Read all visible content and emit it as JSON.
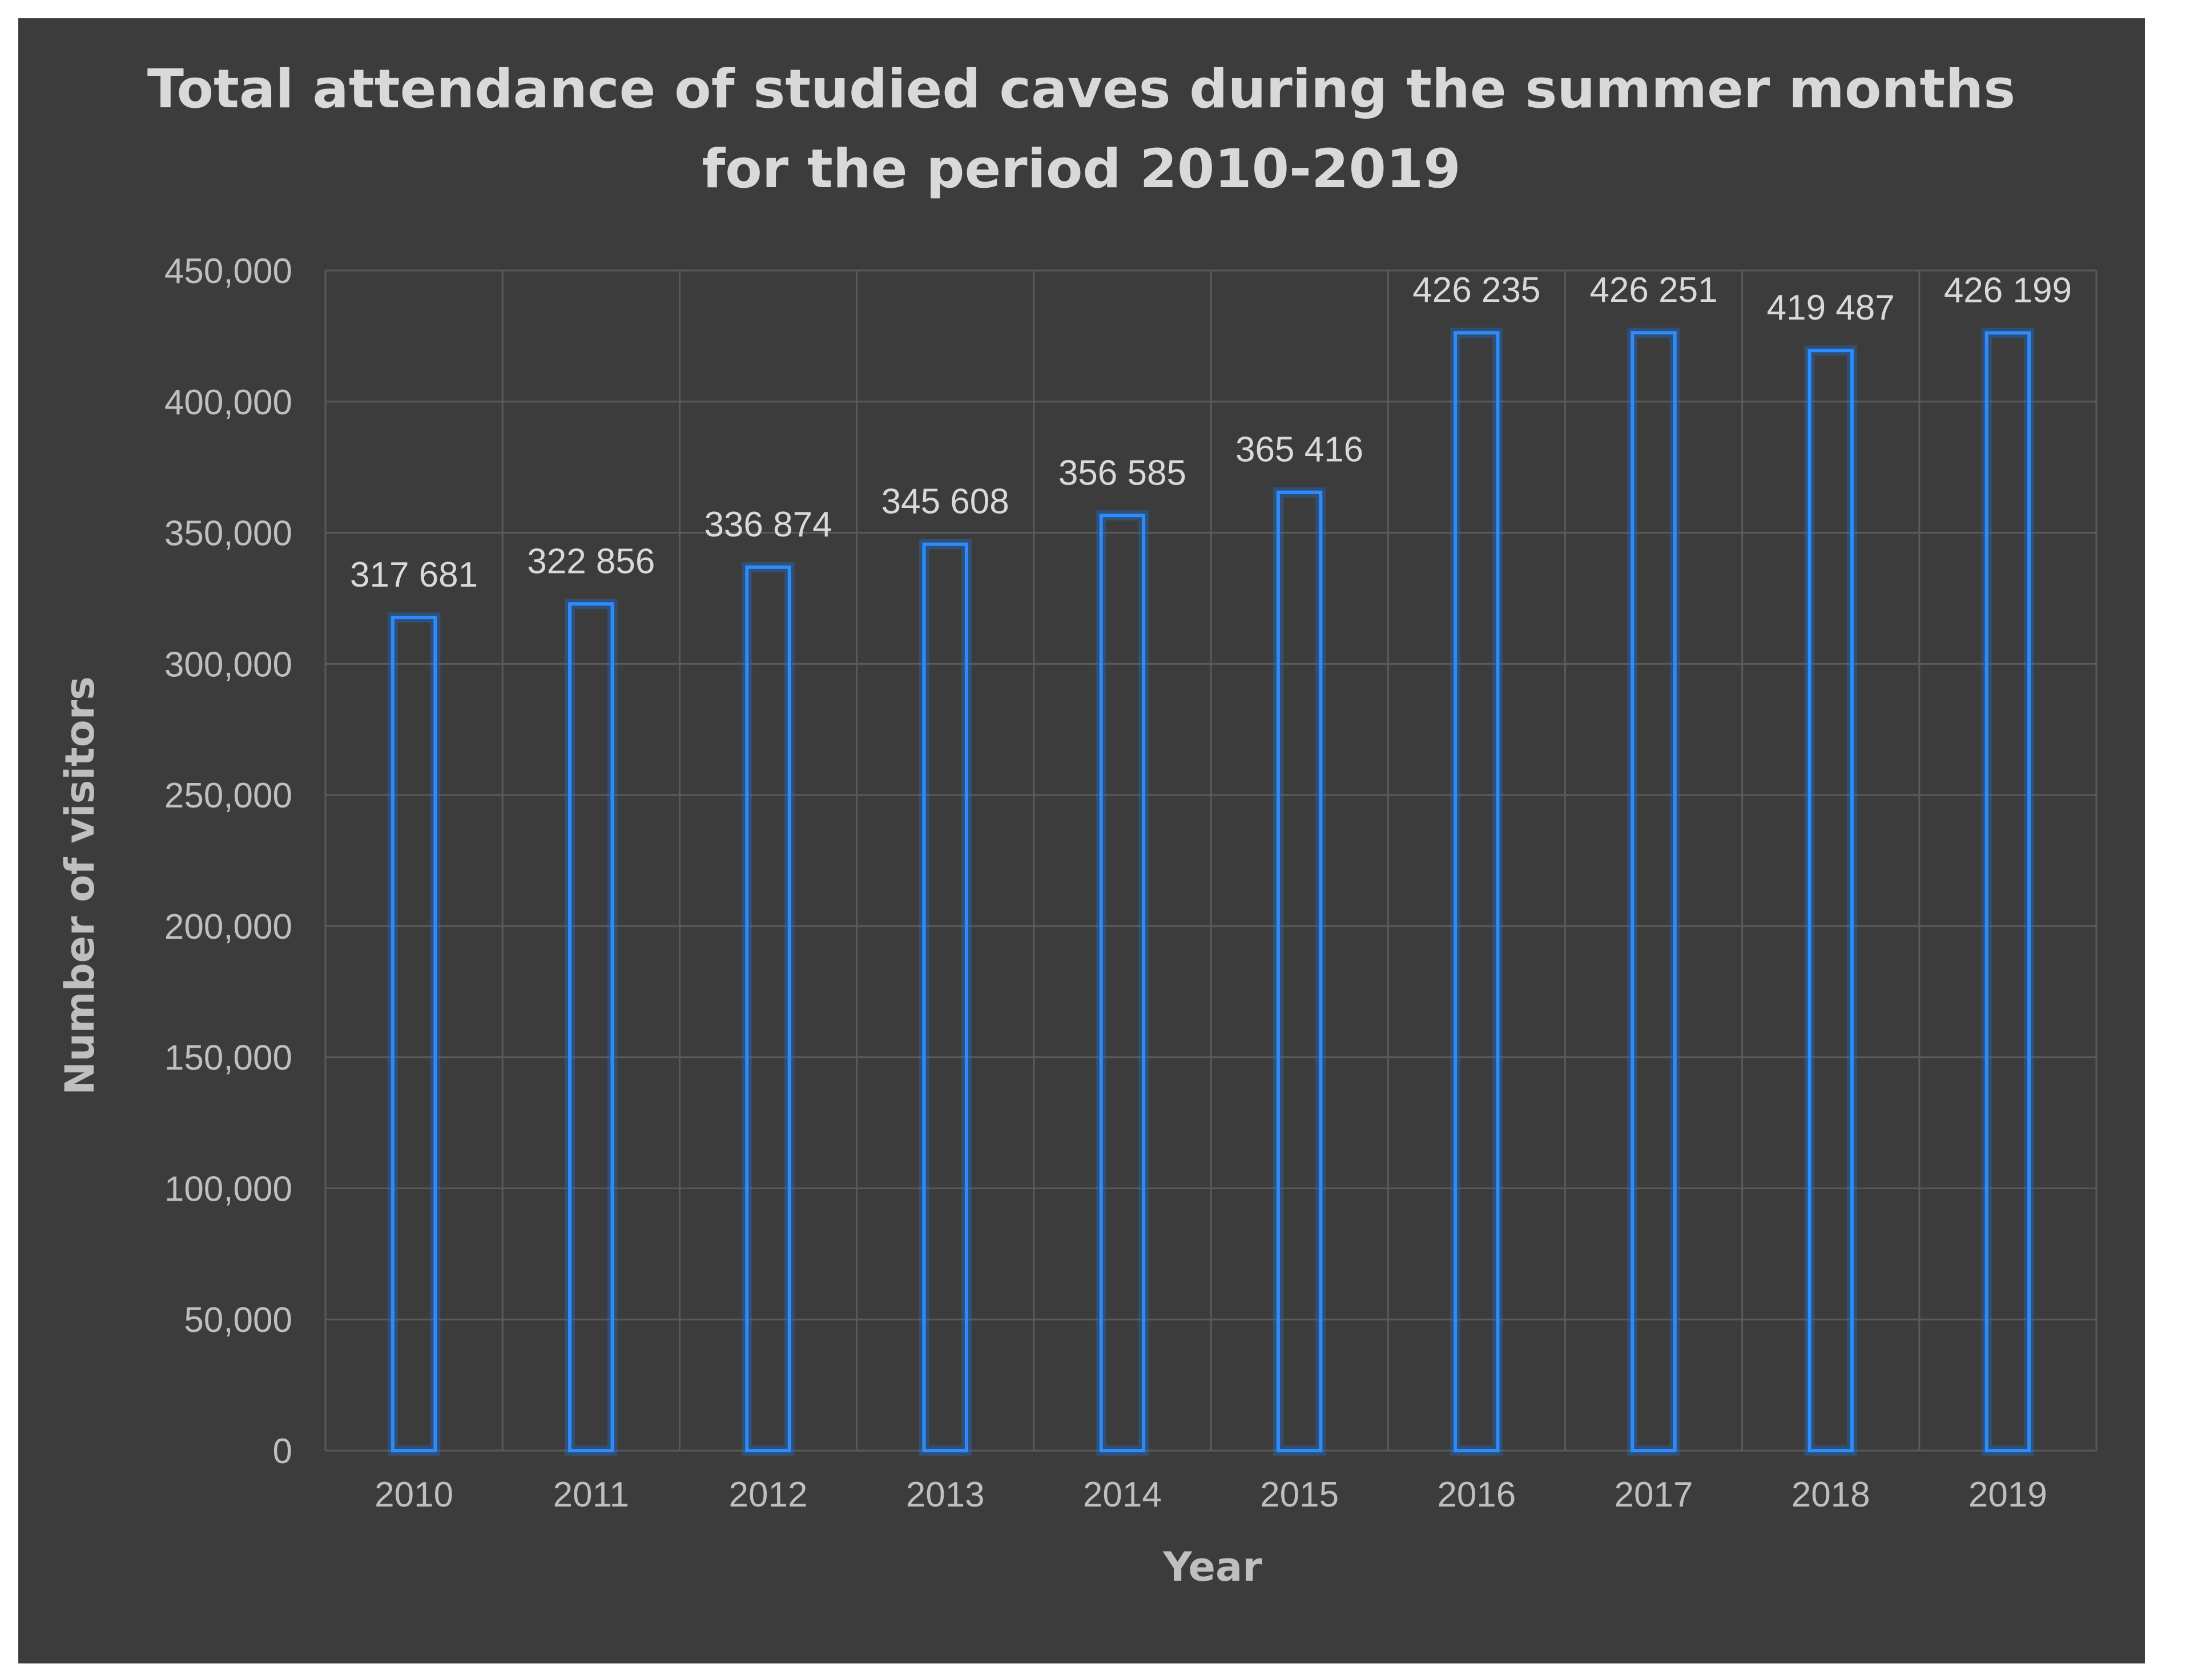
{
  "chart_data": {
    "type": "bar",
    "title": "Total attendance of studied caves during the summer months",
    "title_line2": "for the period 2010-2019",
    "xlabel": "Year",
    "ylabel": "Number of visitors",
    "categories": [
      "2010",
      "2011",
      "2012",
      "2013",
      "2014",
      "2015",
      "2016",
      "2017",
      "2018",
      "2019"
    ],
    "values": [
      317681,
      322856,
      336874,
      345608,
      356585,
      365416,
      426235,
      426251,
      419487,
      426199
    ],
    "data_labels": [
      "317 681",
      "322 856",
      "336 874",
      "345 608",
      "356 585",
      "365 416",
      "426 235",
      "426 251",
      "419 487",
      "426 199"
    ],
    "ylim": [
      0,
      450000
    ],
    "yticks": [
      0,
      50000,
      100000,
      150000,
      200000,
      250000,
      300000,
      350000,
      400000,
      450000
    ],
    "ytick_labels": [
      "0",
      "50,000",
      "100,000",
      "150,000",
      "200,000",
      "250,000",
      "300,000",
      "350,000",
      "400,000",
      "450,000"
    ],
    "grid": true,
    "colors": {
      "background": "#3c3c3c",
      "bar_outline": "#2b8cff",
      "text": "#d9d9d9"
    }
  }
}
